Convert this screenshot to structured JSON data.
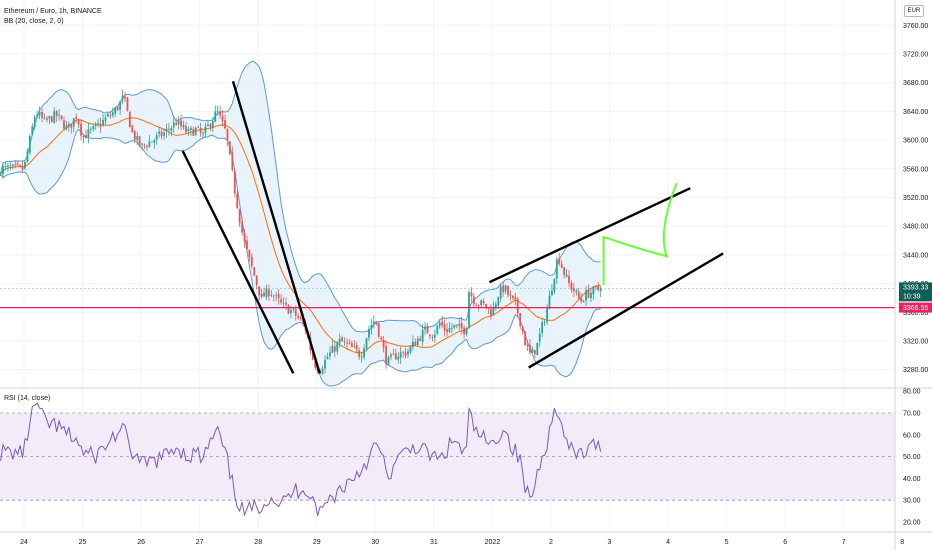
{
  "header": {
    "title": "Ethereum / Euro, 1h, BINANCE",
    "indicator": "BB (20, close, 2, 0)",
    "currency_badge": "EUR"
  },
  "rsi_panel": {
    "label": "RSI (14, close)"
  },
  "price_tags": {
    "last_price": "3393.33",
    "countdown": "10:39",
    "support_level": "3366.55"
  },
  "colors": {
    "up": "#26a69a",
    "down": "#ef5350",
    "bb_band": "#5b9bd5",
    "bb_basis": "#ff6d00",
    "bb_fill": "#e3f0fb",
    "rsi_line": "#7e57c2",
    "rsi_fill": "#ede7f6",
    "support_line": "#e91e63",
    "last_tag": "#0f5e57",
    "pattern_lines": "#000000",
    "projection": "#66ff33"
  },
  "chart_data": [
    {
      "type": "candlestick",
      "title": "Ethereum / Euro, 1h, BINANCE",
      "overlay": "BB (20, close, 2, 0)",
      "x_ticks": [
        "24",
        "25",
        "26",
        "27",
        "28",
        "29",
        "30",
        "31",
        "2022",
        "2",
        "3",
        "4",
        "5",
        "6",
        "7",
        "8"
      ],
      "y_ticks": [
        "3760.00",
        "3720.00",
        "3680.00",
        "3640.00",
        "3600.00",
        "3560.00",
        "3520.00",
        "3480.00",
        "3440.00",
        "3400.00",
        "3360.00",
        "3320.00",
        "3280.00"
      ],
      "ylim": [
        3263,
        3782
      ],
      "x_range_days": [
        -0.42,
        8.25
      ],
      "closes": [
        {
          "d": 0.0,
          "v": 3560
        },
        {
          "d": 0.1,
          "v": 3600
        },
        {
          "d": 0.2,
          "v": 3640
        },
        {
          "d": 0.35,
          "v": 3625
        },
        {
          "d": 0.55,
          "v": 3635
        },
        {
          "d": 0.75,
          "v": 3615
        },
        {
          "d": 0.9,
          "v": 3635
        },
        {
          "d": 1.0,
          "v": 3605
        },
        {
          "d": 1.2,
          "v": 3615
        },
        {
          "d": 1.4,
          "v": 3630
        },
        {
          "d": 1.55,
          "v": 3640
        },
        {
          "d": 1.7,
          "v": 3660
        },
        {
          "d": 1.85,
          "v": 3610
        },
        {
          "d": 2.0,
          "v": 3590
        },
        {
          "d": 2.2,
          "v": 3600
        },
        {
          "d": 2.4,
          "v": 3610
        },
        {
          "d": 2.6,
          "v": 3625
        },
        {
          "d": 2.8,
          "v": 3610
        },
        {
          "d": 2.95,
          "v": 3615
        },
        {
          "d": 3.05,
          "v": 3605
        },
        {
          "d": 3.15,
          "v": 3620
        },
        {
          "d": 3.3,
          "v": 3640
        },
        {
          "d": 3.45,
          "v": 3610
        },
        {
          "d": 3.6,
          "v": 3530
        },
        {
          "d": 3.75,
          "v": 3460
        },
        {
          "d": 3.9,
          "v": 3420
        },
        {
          "d": 4.05,
          "v": 3380
        },
        {
          "d": 4.2,
          "v": 3390
        },
        {
          "d": 4.4,
          "v": 3370
        },
        {
          "d": 4.6,
          "v": 3360
        },
        {
          "d": 4.8,
          "v": 3340
        },
        {
          "d": 4.95,
          "v": 3290
        },
        {
          "d": 5.05,
          "v": 3280
        },
        {
          "d": 5.2,
          "v": 3300
        },
        {
          "d": 5.4,
          "v": 3320
        },
        {
          "d": 5.6,
          "v": 3310
        },
        {
          "d": 5.75,
          "v": 3300
        },
        {
          "d": 5.9,
          "v": 3340
        },
        {
          "d": 6.0,
          "v": 3350
        },
        {
          "d": 6.1,
          "v": 3320
        },
        {
          "d": 6.2,
          "v": 3290
        },
        {
          "d": 6.35,
          "v": 3300
        },
        {
          "d": 6.55,
          "v": 3305
        },
        {
          "d": 6.7,
          "v": 3320
        },
        {
          "d": 6.85,
          "v": 3335
        },
        {
          "d": 7.0,
          "v": 3330
        },
        {
          "d": 7.1,
          "v": 3345
        },
        {
          "d": 7.2,
          "v": 3335
        },
        {
          "d": 7.35,
          "v": 3340
        },
        {
          "d": 7.55,
          "v": 3335
        },
        {
          "d": 7.6,
          "v": 3390
        },
        {
          "d": 7.7,
          "v": 3375
        },
        {
          "d": 7.85,
          "v": 3370
        },
        {
          "d": 8.0,
          "v": 3360
        },
        {
          "d": 8.1,
          "v": 3385
        },
        {
          "d": 8.2,
          "v": 3395
        },
        {
          "d": 8.3,
          "v": 3380
        },
        {
          "d": 8.4,
          "v": 3370
        },
        {
          "d": 8.5,
          "v": 3340
        },
        {
          "d": 8.55,
          "v": 3320
        },
        {
          "d": 8.65,
          "v": 3300
        },
        {
          "d": 8.75,
          "v": 3310
        },
        {
          "d": 8.85,
          "v": 3340
        },
        {
          "d": 8.95,
          "v": 3370
        },
        {
          "d": 9.05,
          "v": 3410
        },
        {
          "d": 9.12,
          "v": 3440
        },
        {
          "d": 9.2,
          "v": 3420
        },
        {
          "d": 9.3,
          "v": 3400
        },
        {
          "d": 9.4,
          "v": 3390
        },
        {
          "d": 9.5,
          "v": 3375
        },
        {
          "d": 9.6,
          "v": 3385
        },
        {
          "d": 9.75,
          "v": 3390
        },
        {
          "d": 9.85,
          "v": 3393.33
        }
      ],
      "support_level": 3366.55,
      "last_price": 3393.33
    },
    {
      "type": "line",
      "title": "RSI (14, close)",
      "y_ticks": [
        "80.00",
        "70.00",
        "60.00",
        "50.00",
        "40.00",
        "30.00",
        "20.00"
      ],
      "ylim": [
        16,
        82
      ],
      "bands": [
        30,
        70
      ],
      "midline": 50,
      "points": [
        {
          "d": 0.0,
          "v": 52
        },
        {
          "d": 0.1,
          "v": 66
        },
        {
          "d": 0.2,
          "v": 75
        },
        {
          "d": 0.35,
          "v": 66
        },
        {
          "d": 0.55,
          "v": 64
        },
        {
          "d": 0.75,
          "v": 60
        },
        {
          "d": 0.9,
          "v": 58
        },
        {
          "d": 1.0,
          "v": 52
        },
        {
          "d": 1.2,
          "v": 50
        },
        {
          "d": 1.4,
          "v": 55
        },
        {
          "d": 1.55,
          "v": 60
        },
        {
          "d": 1.7,
          "v": 62
        },
        {
          "d": 1.85,
          "v": 52
        },
        {
          "d": 2.0,
          "v": 46
        },
        {
          "d": 2.2,
          "v": 48
        },
        {
          "d": 2.4,
          "v": 50
        },
        {
          "d": 2.6,
          "v": 55
        },
        {
          "d": 2.8,
          "v": 50
        },
        {
          "d": 2.95,
          "v": 52
        },
        {
          "d": 3.05,
          "v": 48
        },
        {
          "d": 3.15,
          "v": 55
        },
        {
          "d": 3.3,
          "v": 62
        },
        {
          "d": 3.45,
          "v": 50
        },
        {
          "d": 3.6,
          "v": 33
        },
        {
          "d": 3.75,
          "v": 24
        },
        {
          "d": 3.9,
          "v": 26
        },
        {
          "d": 4.05,
          "v": 28
        },
        {
          "d": 4.2,
          "v": 32
        },
        {
          "d": 4.4,
          "v": 28
        },
        {
          "d": 4.6,
          "v": 34
        },
        {
          "d": 4.8,
          "v": 36
        },
        {
          "d": 4.95,
          "v": 30
        },
        {
          "d": 5.05,
          "v": 24
        },
        {
          "d": 5.2,
          "v": 30
        },
        {
          "d": 5.4,
          "v": 35
        },
        {
          "d": 5.6,
          "v": 40
        },
        {
          "d": 5.75,
          "v": 44
        },
        {
          "d": 5.9,
          "v": 50
        },
        {
          "d": 6.0,
          "v": 55
        },
        {
          "d": 6.1,
          "v": 52
        },
        {
          "d": 6.2,
          "v": 40
        },
        {
          "d": 6.35,
          "v": 47
        },
        {
          "d": 6.55,
          "v": 53
        },
        {
          "d": 6.7,
          "v": 55
        },
        {
          "d": 6.85,
          "v": 52
        },
        {
          "d": 7.0,
          "v": 50
        },
        {
          "d": 7.1,
          "v": 48
        },
        {
          "d": 7.2,
          "v": 52
        },
        {
          "d": 7.35,
          "v": 58
        },
        {
          "d": 7.55,
          "v": 50
        },
        {
          "d": 7.6,
          "v": 70
        },
        {
          "d": 7.7,
          "v": 62
        },
        {
          "d": 7.85,
          "v": 58
        },
        {
          "d": 8.0,
          "v": 54
        },
        {
          "d": 8.1,
          "v": 60
        },
        {
          "d": 8.2,
          "v": 64
        },
        {
          "d": 8.3,
          "v": 56
        },
        {
          "d": 8.4,
          "v": 52
        },
        {
          "d": 8.5,
          "v": 46
        },
        {
          "d": 8.55,
          "v": 36
        },
        {
          "d": 8.65,
          "v": 30
        },
        {
          "d": 8.75,
          "v": 40
        },
        {
          "d": 8.85,
          "v": 52
        },
        {
          "d": 8.95,
          "v": 58
        },
        {
          "d": 9.05,
          "v": 70
        },
        {
          "d": 9.12,
          "v": 74
        },
        {
          "d": 9.2,
          "v": 60
        },
        {
          "d": 9.3,
          "v": 55
        },
        {
          "d": 9.4,
          "v": 50
        },
        {
          "d": 9.5,
          "v": 52
        },
        {
          "d": 9.6,
          "v": 52
        },
        {
          "d": 9.75,
          "v": 55
        },
        {
          "d": 9.85,
          "v": 56
        }
      ]
    }
  ],
  "drawings": {
    "descending_lines": [
      {
        "start": {
          "d": 3.57,
          "v": 3682
        },
        "end": {
          "d": 5.05,
          "v": 3275
        }
      },
      {
        "start": {
          "d": 2.71,
          "v": 3585
        },
        "end": {
          "d": 4.6,
          "v": 3275
        }
      }
    ],
    "channel_lines": [
      {
        "start": {
          "d": 7.95,
          "v": 3402
        },
        "end": {
          "d": 11.38,
          "v": 3533
        }
      },
      {
        "start": {
          "d": 8.62,
          "v": 3283
        },
        "end": {
          "d": 11.94,
          "v": 3442
        }
      }
    ],
    "projection_path": [
      {
        "d": 9.9,
        "v": 3398
      },
      {
        "d": 9.9,
        "v": 3465
      },
      {
        "d": 10.43,
        "v": 3450
      },
      {
        "d": 10.98,
        "v": 3438
      },
      {
        "d": 10.8,
        "v": 3475
      },
      {
        "d": 11.15,
        "v": 3540
      }
    ]
  }
}
